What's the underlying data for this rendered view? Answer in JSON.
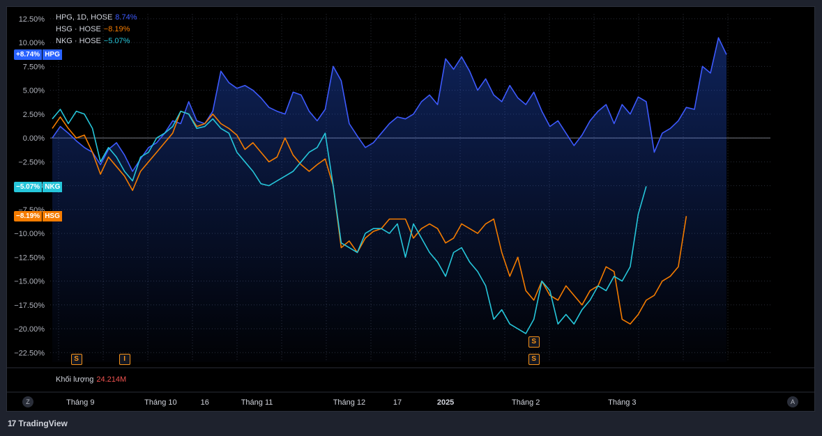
{
  "legend": {
    "rows": [
      {
        "label": "HPG, 1D, HOSE",
        "value": "8.74%",
        "color": "#3d5afe"
      },
      {
        "label": "HSG · HOSE",
        "value": "−8.19%",
        "color": "#f57c00"
      },
      {
        "label": "NKG · HOSE",
        "value": "−5.07%",
        "color": "#26c6da"
      }
    ]
  },
  "badges": [
    {
      "pct": "+8.74%",
      "sym": "HPG",
      "color": "#2962ff",
      "value": 8.74
    },
    {
      "pct": "−5.07%",
      "sym": "NKG",
      "color": "#26c6da",
      "value": -5.07
    },
    {
      "pct": "−8.19%",
      "sym": "HSG",
      "color": "#f57c00",
      "value": -8.19
    }
  ],
  "volume": {
    "label": "Khối lượng",
    "value": "24.214M"
  },
  "events": [
    {
      "label": "S",
      "index": 3
    },
    {
      "label": "I",
      "index": 9
    },
    {
      "label": "S",
      "index": 60
    },
    {
      "label": "S",
      "index": 60
    }
  ],
  "bottom_buttons": {
    "left": "Z",
    "right": "A"
  },
  "brand": {
    "logo": "17",
    "name": "TradingView"
  },
  "chart_data": {
    "type": "line",
    "y_unit": "%",
    "ylim": [
      -23.5,
      13
    ],
    "y_ticks": [
      "12.50%",
      "10.00%",
      "7.50%",
      "5.00%",
      "2.50%",
      "0.00%",
      "−2.50%",
      "−5.00%",
      "−7.50%",
      "−10.00%",
      "−12.50%",
      "−15.00%",
      "−17.50%",
      "−20.00%",
      "−22.50%"
    ],
    "y_tick_values": [
      12.5,
      10,
      7.5,
      5,
      2.5,
      0,
      -2.5,
      -5,
      -7.5,
      -10,
      -12.5,
      -15,
      -17.5,
      -20,
      -22.5
    ],
    "x_ticks": [
      {
        "label": "Tháng 9",
        "index": 3.5
      },
      {
        "label": "Tháng 10",
        "index": 13.5
      },
      {
        "label": "16",
        "index": 19
      },
      {
        "label": "Tháng 11",
        "index": 25.5
      },
      {
        "label": "Tháng 12",
        "index": 37
      },
      {
        "label": "17",
        "index": 43
      },
      {
        "label": "2025",
        "index": 49
      },
      {
        "label": "Tháng 2",
        "index": 59
      },
      {
        "label": "Tháng 3",
        "index": 71
      }
    ],
    "grid": true,
    "series": [
      {
        "name": "HPG",
        "color": "#3d5afe",
        "values": [
          0.0,
          1.2,
          0.5,
          -0.3,
          -1.0,
          -1.5,
          -2.8,
          -1.2,
          -0.5,
          -1.8,
          -3.5,
          -2.2,
          -1.0,
          -0.5,
          0.5,
          1.8,
          1.5,
          3.8,
          1.8,
          1.5,
          2.8,
          7.0,
          5.8,
          5.2,
          5.5,
          5.0,
          4.2,
          3.2,
          2.8,
          2.5,
          4.8,
          4.5,
          2.8,
          1.8,
          3.0,
          7.5,
          6.0,
          1.5,
          0.2,
          -1.0,
          -0.5,
          0.5,
          1.5,
          2.2,
          2.0,
          2.5,
          3.8,
          4.5,
          3.5,
          8.3,
          7.2,
          8.5,
          7.0,
          5.0,
          6.2,
          4.5,
          3.8,
          5.5,
          4.2,
          3.5,
          4.8,
          2.8,
          1.2,
          1.8,
          0.5,
          -0.8,
          0.3,
          1.8,
          2.8,
          3.5,
          1.5,
          3.5,
          2.5,
          4.3,
          3.8,
          -1.5,
          0.5,
          1.0,
          1.8,
          3.2,
          3.0,
          7.5,
          6.8,
          10.5,
          8.74
        ]
      },
      {
        "name": "HSG",
        "color": "#f57c00",
        "values": [
          1.0,
          2.2,
          1.0,
          0.0,
          0.3,
          -1.5,
          -3.8,
          -2.0,
          -3.0,
          -4.0,
          -5.5,
          -3.5,
          -2.5,
          -1.5,
          -0.5,
          0.5,
          2.8,
          2.5,
          1.2,
          1.5,
          2.5,
          1.5,
          1.0,
          0.3,
          -1.2,
          -0.5,
          -1.5,
          -2.5,
          -2.0,
          0.0,
          -1.8,
          -2.8,
          -3.5,
          -2.8,
          -2.2,
          -5.0,
          -11.5,
          -10.8,
          -12.0,
          -10.5,
          -9.8,
          -9.5,
          -8.5,
          -8.5,
          -8.5,
          -10.5,
          -9.5,
          -9.0,
          -9.5,
          -11.0,
          -10.5,
          -9.0,
          -9.5,
          -10.0,
          -9.0,
          -8.5,
          -12.0,
          -14.5,
          -12.5,
          -16.0,
          -17.0,
          -15.0,
          -16.5,
          -17.0,
          -15.5,
          -16.5,
          -17.5,
          -16.0,
          -15.5,
          -13.5,
          -14.0,
          -19.0,
          -19.5,
          -18.5,
          -17.0,
          -16.5,
          -15.0,
          -14.5,
          -13.5,
          -8.19
        ]
      },
      {
        "name": "NKG",
        "color": "#26c6da",
        "values": [
          2.0,
          3.0,
          1.5,
          2.8,
          2.5,
          1.0,
          -2.5,
          -1.0,
          -2.0,
          -3.5,
          -4.5,
          -2.0,
          -1.5,
          0.0,
          0.5,
          1.2,
          2.8,
          2.5,
          1.0,
          1.2,
          2.0,
          1.0,
          0.5,
          -1.5,
          -2.5,
          -3.5,
          -4.8,
          -5.0,
          -4.5,
          -4.0,
          -3.5,
          -2.5,
          -1.5,
          -1.0,
          0.5,
          -5.0,
          -11.0,
          -11.5,
          -12.0,
          -10.0,
          -9.5,
          -9.5,
          -10.0,
          -9.0,
          -12.5,
          -9.0,
          -10.5,
          -12.0,
          -13.0,
          -14.5,
          -12.0,
          -11.5,
          -13.0,
          -14.0,
          -15.5,
          -19.0,
          -18.0,
          -19.5,
          -20.0,
          -20.5,
          -19.0,
          -15.0,
          -16.0,
          -19.5,
          -18.5,
          -19.5,
          -18.0,
          -17.0,
          -15.5,
          -16.0,
          -14.5,
          -15.0,
          -13.5,
          -8.0,
          -5.07
        ]
      }
    ]
  }
}
